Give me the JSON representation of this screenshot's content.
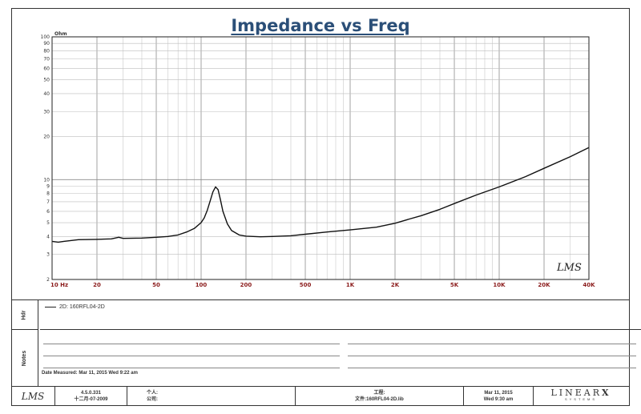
{
  "chart_data": {
    "type": "line",
    "title": "Impedance vs Freq",
    "ylabel": "Ohm",
    "xlabel": "",
    "xscale": "log",
    "yscale": "log",
    "xlim": [
      10,
      40000
    ],
    "ylim": [
      2,
      100
    ],
    "grid": true,
    "x_tick_labels": [
      {
        "v": 10,
        "t": "10  Hz"
      },
      {
        "v": 20,
        "t": "20"
      },
      {
        "v": 50,
        "t": "50"
      },
      {
        "v": 100,
        "t": "100"
      },
      {
        "v": 200,
        "t": "200"
      },
      {
        "v": 500,
        "t": "500"
      },
      {
        "v": 1000,
        "t": "1K"
      },
      {
        "v": 2000,
        "t": "2K"
      },
      {
        "v": 5000,
        "t": "5K"
      },
      {
        "v": 10000,
        "t": "10K"
      },
      {
        "v": 20000,
        "t": "20K"
      },
      {
        "v": 40000,
        "t": "40K"
      }
    ],
    "y_tick_labels": [
      {
        "v": 2,
        "t": "2"
      },
      {
        "v": 3,
        "t": "3"
      },
      {
        "v": 4,
        "t": "4"
      },
      {
        "v": 5,
        "t": "5"
      },
      {
        "v": 6,
        "t": "6"
      },
      {
        "v": 7,
        "t": "7"
      },
      {
        "v": 8,
        "t": "8"
      },
      {
        "v": 9,
        "t": "9"
      },
      {
        "v": 10,
        "t": "10"
      },
      {
        "v": 20,
        "t": "20"
      },
      {
        "v": 30,
        "t": "30"
      },
      {
        "v": 40,
        "t": "40"
      },
      {
        "v": 50,
        "t": "50"
      },
      {
        "v": 60,
        "t": "60"
      },
      {
        "v": 70,
        "t": "70"
      },
      {
        "v": 80,
        "t": "80"
      },
      {
        "v": 90,
        "t": "90"
      },
      {
        "v": 100,
        "t": "100"
      }
    ],
    "series": [
      {
        "name": "2D: 160RFL04-2D",
        "color": "#111111",
        "x": [
          10,
          11,
          12,
          15,
          20,
          25,
          28,
          30,
          40,
          50,
          60,
          70,
          80,
          90,
          100,
          105,
          110,
          115,
          120,
          125,
          130,
          135,
          140,
          150,
          160,
          180,
          200,
          250,
          300,
          400,
          500,
          700,
          1000,
          1500,
          2000,
          2500,
          3000,
          4000,
          5000,
          7000,
          10000,
          15000,
          20000,
          30000,
          40000
        ],
        "y": [
          3.7,
          3.65,
          3.7,
          3.8,
          3.82,
          3.85,
          3.95,
          3.88,
          3.9,
          3.95,
          4.0,
          4.1,
          4.3,
          4.55,
          5.0,
          5.4,
          6.1,
          7.1,
          8.2,
          8.9,
          8.5,
          7.2,
          6.0,
          4.9,
          4.4,
          4.1,
          4.02,
          3.98,
          4.0,
          4.05,
          4.15,
          4.3,
          4.45,
          4.65,
          4.95,
          5.3,
          5.6,
          6.2,
          6.8,
          7.8,
          8.9,
          10.5,
          12.0,
          14.5,
          16.8
        ]
      }
    ]
  },
  "watermark": "LMS",
  "panels": {
    "legend_label": "Hdr",
    "notes_label": "Notes",
    "legend_entry": "2D: 160RFL04-2D",
    "date_measured": "Date Measured: Mar 11, 2015  Wed  9:22 am"
  },
  "footer": {
    "logo": "LMS",
    "version": "4.5.0.331",
    "build_date": "十二月-07-2009",
    "user_label": "个人:",
    "company_label": "公司:",
    "project_label": "工程:",
    "file_label": "文件:160RFL04-2D.lib",
    "date": "Mar 11, 2015",
    "time": "Wed  9:30 am",
    "brand": "LINEAR",
    "brand_x": "X",
    "brand_sub": "SYSTEMS"
  }
}
